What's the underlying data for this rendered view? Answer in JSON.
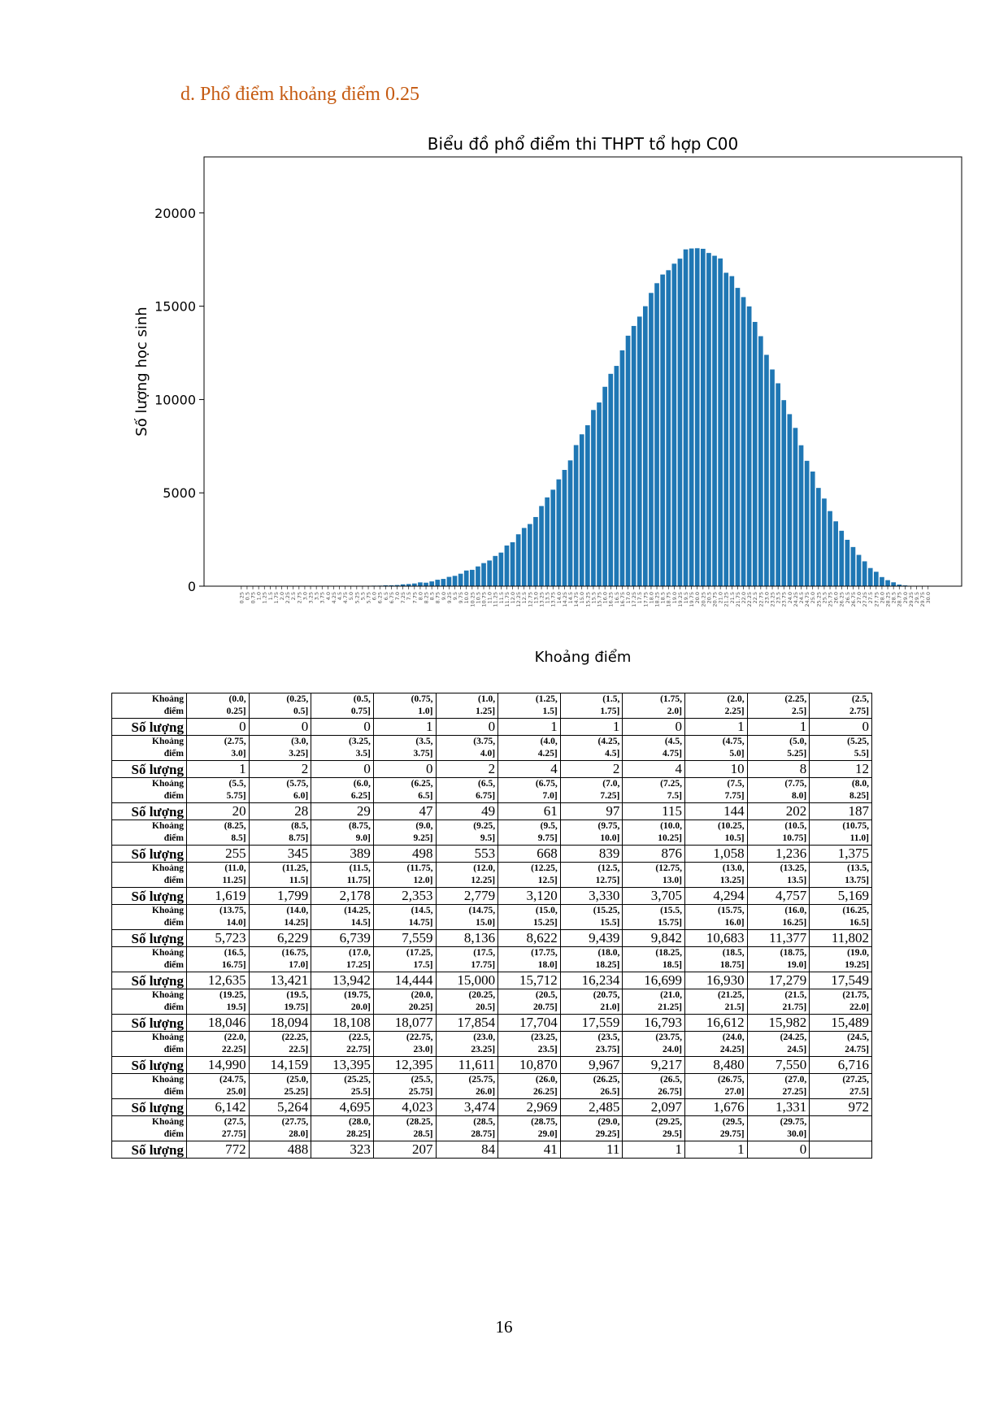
{
  "heading": "d.  Phổ điểm khoảng điểm 0.25",
  "page_number": "16",
  "table": {
    "range_header": "Khoảng\nđiểm",
    "count_header": "Số lượng"
  },
  "chart_data": {
    "type": "bar",
    "title": "Biểu đồ phổ điểm thi THPT tổ hợp C00",
    "xlabel": "Khoảng điểm",
    "ylabel": "Số lượng học sinh",
    "ylim": [
      0,
      23000
    ],
    "yticks": [
      "0",
      "5000",
      "10000",
      "15000",
      "20000"
    ],
    "bar_color": "#1f77b4",
    "grid": false,
    "categories": [
      "0.25",
      "0.5",
      "0.75",
      "1.0",
      "1.25",
      "1.5",
      "1.75",
      "2.0",
      "2.25",
      "2.5",
      "2.75",
      "3.0",
      "3.25",
      "3.5",
      "3.75",
      "4.0",
      "4.25",
      "4.5",
      "4.75",
      "5.0",
      "5.25",
      "5.5",
      "5.75",
      "6.0",
      "6.25",
      "6.5",
      "6.75",
      "7.0",
      "7.25",
      "7.5",
      "7.75",
      "8.0",
      "8.25",
      "8.5",
      "8.75",
      "9.0",
      "9.25",
      "9.5",
      "9.75",
      "10.0",
      "10.25",
      "10.5",
      "10.75",
      "11.0",
      "11.25",
      "11.5",
      "11.75",
      "12.0",
      "12.25",
      "12.5",
      "12.75",
      "13.0",
      "13.25",
      "13.5",
      "13.75",
      "14.0",
      "14.25",
      "14.5",
      "14.75",
      "15.0",
      "15.25",
      "15.5",
      "15.75",
      "16.0",
      "16.25",
      "16.5",
      "16.75",
      "17.0",
      "17.25",
      "17.5",
      "17.75",
      "18.0",
      "18.25",
      "18.5",
      "18.75",
      "19.0",
      "19.25",
      "19.5",
      "19.75",
      "20.0",
      "20.25",
      "20.5",
      "20.75",
      "21.0",
      "21.25",
      "21.5",
      "21.75",
      "22.0",
      "22.25",
      "22.5",
      "22.75",
      "23.0",
      "23.25",
      "23.5",
      "23.75",
      "24.0",
      "24.25",
      "24.5",
      "24.75",
      "25.0",
      "25.25",
      "25.5",
      "25.75",
      "26.0",
      "26.25",
      "26.5",
      "26.75",
      "27.0",
      "27.25",
      "27.5",
      "27.75",
      "28.0",
      "28.25",
      "28.5",
      "28.75",
      "29.0",
      "29.25",
      "29.5",
      "29.75",
      "30.0"
    ],
    "ranges": [
      "(0.0,\n0.25]",
      "(0.25,\n0.5]",
      "(0.5,\n0.75]",
      "(0.75,\n1.0]",
      "(1.0,\n1.25]",
      "(1.25,\n1.5]",
      "(1.5,\n1.75]",
      "(1.75,\n2.0]",
      "(2.0,\n2.25]",
      "(2.25,\n2.5]",
      "(2.5,\n2.75]",
      "(2.75,\n3.0]",
      "(3.0,\n3.25]",
      "(3.25,\n3.5]",
      "(3.5,\n3.75]",
      "(3.75,\n4.0]",
      "(4.0,\n4.25]",
      "(4.25,\n4.5]",
      "(4.5,\n4.75]",
      "(4.75,\n5.0]",
      "(5.0,\n5.25]",
      "(5.25,\n5.5]",
      "(5.5,\n5.75]",
      "(5.75,\n6.0]",
      "(6.0,\n6.25]",
      "(6.25,\n6.5]",
      "(6.5,\n6.75]",
      "(6.75,\n7.0]",
      "(7.0,\n7.25]",
      "(7.25,\n7.5]",
      "(7.5,\n7.75]",
      "(7.75,\n8.0]",
      "(8.0,\n8.25]",
      "(8.25,\n8.5]",
      "(8.5,\n8.75]",
      "(8.75,\n9.0]",
      "(9.0,\n9.25]",
      "(9.25,\n9.5]",
      "(9.5,\n9.75]",
      "(9.75,\n10.0]",
      "(10.0,\n10.25]",
      "(10.25,\n10.5]",
      "(10.5,\n10.75]",
      "(10.75,\n11.0]",
      "(11.0,\n11.25]",
      "(11.25,\n11.5]",
      "(11.5,\n11.75]",
      "(11.75,\n12.0]",
      "(12.0,\n12.25]",
      "(12.25,\n12.5]",
      "(12.5,\n12.75]",
      "(12.75,\n13.0]",
      "(13.0,\n13.25]",
      "(13.25,\n13.5]",
      "(13.5,\n13.75]",
      "(13.75,\n14.0]",
      "(14.0,\n14.25]",
      "(14.25,\n14.5]",
      "(14.5,\n14.75]",
      "(14.75,\n15.0]",
      "(15.0,\n15.25]",
      "(15.25,\n15.5]",
      "(15.5,\n15.75]",
      "(15.75,\n16.0]",
      "(16.0,\n16.25]",
      "(16.25,\n16.5]",
      "(16.5,\n16.75]",
      "(16.75,\n17.0]",
      "(17.0,\n17.25]",
      "(17.25,\n17.5]",
      "(17.5,\n17.75]",
      "(17.75,\n18.0]",
      "(18.0,\n18.25]",
      "(18.25,\n18.5]",
      "(18.5,\n18.75]",
      "(18.75,\n19.0]",
      "(19.0,\n19.25]",
      "(19.25,\n19.5]",
      "(19.5,\n19.75]",
      "(19.75,\n20.0]",
      "(20.0,\n20.25]",
      "(20.25,\n20.5]",
      "(20.5,\n20.75]",
      "(20.75,\n21.0]",
      "(21.0,\n21.25]",
      "(21.25,\n21.5]",
      "(21.5,\n21.75]",
      "(21.75,\n22.0]",
      "(22.0,\n22.25]",
      "(22.25,\n22.5]",
      "(22.5,\n22.75]",
      "(22.75,\n23.0]",
      "(23.0,\n23.25]",
      "(23.25,\n23.5]",
      "(23.5,\n23.75]",
      "(23.75,\n24.0]",
      "(24.0,\n24.25]",
      "(24.25,\n24.5]",
      "(24.5,\n24.75]",
      "(24.75,\n25.0]",
      "(25.0,\n25.25]",
      "(25.25,\n25.5]",
      "(25.5,\n25.75]",
      "(25.75,\n26.0]",
      "(26.0,\n26.25]",
      "(26.25,\n26.5]",
      "(26.5,\n26.75]",
      "(26.75,\n27.0]",
      "(27.0,\n27.25]",
      "(27.25,\n27.5]",
      "(27.5,\n27.75]",
      "(27.75,\n28.0]",
      "(28.0,\n28.25]",
      "(28.25,\n28.5]",
      "(28.5,\n28.75]",
      "(28.75,\n29.0]",
      "(29.0,\n29.25]",
      "(29.25,\n29.5]",
      "(29.5,\n29.75]",
      "(29.75,\n30.0]"
    ],
    "counts_text": [
      "0",
      "0",
      "0",
      "1",
      "0",
      "1",
      "1",
      "0",
      "1",
      "1",
      "0",
      "1",
      "2",
      "0",
      "0",
      "2",
      "4",
      "2",
      "4",
      "10",
      "8",
      "12",
      "20",
      "28",
      "29",
      "47",
      "49",
      "61",
      "97",
      "115",
      "144",
      "202",
      "187",
      "255",
      "345",
      "389",
      "498",
      "553",
      "668",
      "839",
      "876",
      "1,058",
      "1,236",
      "1,375",
      "1,619",
      "1,799",
      "2,178",
      "2,353",
      "2,779",
      "3,120",
      "3,330",
      "3,705",
      "4,294",
      "4,757",
      "5,169",
      "5,723",
      "6,229",
      "6,739",
      "7,559",
      "8,136",
      "8,622",
      "9,439",
      "9,842",
      "10,683",
      "11,377",
      "11,802",
      "12,635",
      "13,421",
      "13,942",
      "14,444",
      "15,000",
      "15,712",
      "16,234",
      "16,699",
      "16,930",
      "17,279",
      "17,549",
      "18,046",
      "18,094",
      "18,108",
      "18,077",
      "17,854",
      "17,704",
      "17,559",
      "16,793",
      "16,612",
      "15,982",
      "15,489",
      "14,990",
      "14,159",
      "13,395",
      "12,395",
      "11,611",
      "10,870",
      "9,967",
      "9,217",
      "8,480",
      "7,550",
      "6,716",
      "6,142",
      "5,264",
      "4,695",
      "4,023",
      "3,474",
      "2,969",
      "2,485",
      "2,097",
      "1,676",
      "1,331",
      "972",
      "772",
      "488",
      "323",
      "207",
      "84",
      "41",
      "11",
      "1",
      "1",
      "0"
    ],
    "values": [
      0,
      0,
      0,
      1,
      0,
      1,
      1,
      0,
      1,
      1,
      0,
      1,
      2,
      0,
      0,
      2,
      4,
      2,
      4,
      10,
      8,
      12,
      20,
      28,
      29,
      47,
      49,
      61,
      97,
      115,
      144,
      202,
      187,
      255,
      345,
      389,
      498,
      553,
      668,
      839,
      876,
      1058,
      1236,
      1375,
      1619,
      1799,
      2178,
      2353,
      2779,
      3120,
      3330,
      3705,
      4294,
      4757,
      5169,
      5723,
      6229,
      6739,
      7559,
      8136,
      8622,
      9439,
      9842,
      10683,
      11377,
      11802,
      12635,
      13421,
      13942,
      14444,
      15000,
      15712,
      16234,
      16699,
      16930,
      17279,
      17549,
      18046,
      18094,
      18108,
      18077,
      17854,
      17704,
      17559,
      16793,
      16612,
      15982,
      15489,
      14990,
      14159,
      13395,
      12395,
      11611,
      10870,
      9967,
      9217,
      8480,
      7550,
      6716,
      6142,
      5264,
      4695,
      4023,
      3474,
      2969,
      2485,
      2097,
      1676,
      1331,
      972,
      772,
      488,
      323,
      207,
      84,
      41,
      11,
      1,
      1,
      0
    ]
  }
}
